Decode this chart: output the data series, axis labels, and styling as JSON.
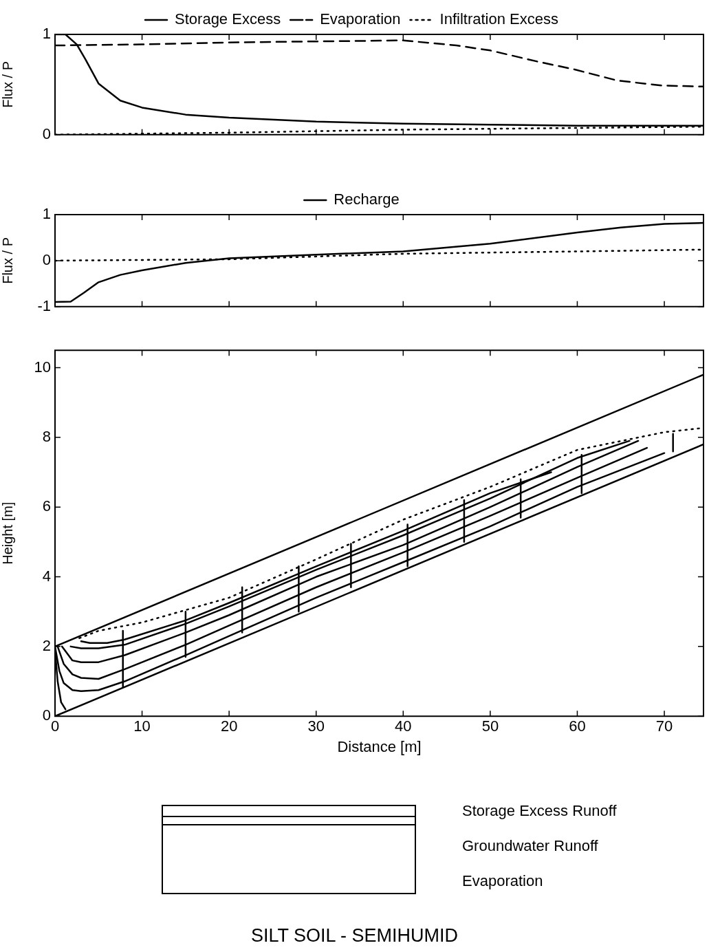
{
  "chart_data": [
    {
      "type": "line",
      "ylabel": "Flux / P",
      "xlim": [
        0,
        74.5
      ],
      "ylim": [
        0,
        1
      ],
      "xticks": [
        0,
        10,
        20,
        30,
        40,
        50,
        60,
        70
      ],
      "yticks": [
        0,
        1
      ],
      "tick_labels": "y",
      "legend": "top",
      "series": [
        {
          "name": "Storage Excess",
          "color": "#000000",
          "line_style": "solid",
          "x": [
            0,
            1.2,
            2.5,
            3.5,
            5,
            7.5,
            10,
            15,
            20,
            30,
            40,
            50,
            60,
            74.5
          ],
          "values": [
            1,
            1,
            0.9,
            0.75,
            0.51,
            0.34,
            0.27,
            0.2,
            0.17,
            0.13,
            0.11,
            0.1,
            0.09,
            0.09
          ]
        },
        {
          "name": "Evaporation",
          "color": "#000000",
          "line_style": "dashed",
          "x": [
            0,
            10,
            20,
            30,
            40,
            46.1,
            50,
            55.4,
            59.7,
            64.6,
            69.7,
            74.5
          ],
          "values": [
            0.89,
            0.9,
            0.92,
            0.93,
            0.94,
            0.89,
            0.84,
            0.73,
            0.65,
            0.54,
            0.49,
            0.48
          ]
        },
        {
          "name": "Infiltration Excess",
          "color": "#000000",
          "line_style": "dotted",
          "x": [
            0,
            20,
            40,
            74.5
          ],
          "values": [
            0,
            0.02,
            0.05,
            0.08
          ]
        }
      ]
    },
    {
      "type": "line",
      "ylabel": "Flux / P",
      "xlim": [
        0,
        74.5
      ],
      "ylim": [
        -1,
        1
      ],
      "xticks": [
        0,
        10,
        20,
        30,
        40,
        50,
        60,
        70
      ],
      "yticks": [
        -1,
        0,
        1
      ],
      "tick_labels": "y",
      "legend": "top",
      "series": [
        {
          "name": "Recharge",
          "color": "#000000",
          "line_style": "solid",
          "x": [
            0,
            1.8,
            3.3,
            5,
            7.5,
            10,
            15,
            20,
            30,
            40,
            50,
            60,
            65,
            70,
            74.5
          ],
          "values": [
            -0.9,
            -0.89,
            -0.7,
            -0.47,
            -0.31,
            -0.21,
            -0.05,
            0.05,
            0.13,
            0.2,
            0.37,
            0.61,
            0.72,
            0.8,
            0.82
          ]
        },
        {
          "color": "#000000",
          "line_style": "dotted",
          "x": [
            0,
            20,
            40,
            60,
            74.5
          ],
          "values": [
            0,
            0.03,
            0.15,
            0.2,
            0.24
          ]
        }
      ]
    },
    {
      "type": "line",
      "title": "SILT SOIL - SEMIHUMID",
      "xlabel": "Distance [m]",
      "ylabel": "Height [m]",
      "xlim": [
        0,
        74.5
      ],
      "ylim": [
        0,
        10.5
      ],
      "xticks": [
        0,
        10,
        20,
        30,
        40,
        50,
        60,
        70
      ],
      "yticks": [
        0,
        2,
        4,
        6,
        8,
        10
      ],
      "annotations": [
        "Storage Excess Runoff",
        "Groundwater Runoff",
        "Evaporation"
      ],
      "series": [
        {
          "color": "#000000",
          "line_style": "solid",
          "x": [
            0,
            74.5
          ],
          "values": [
            2,
            9.8
          ]
        },
        {
          "color": "#000000",
          "line_style": "solid",
          "x": [
            0,
            74.5
          ],
          "values": [
            0,
            7.8
          ]
        },
        {
          "color": "#000000",
          "line_style": "dotted",
          "x": [
            2.8,
            5,
            10,
            20,
            30,
            40,
            50,
            60,
            70,
            74.5
          ],
          "values": [
            2.24,
            2.45,
            2.69,
            3.4,
            4.5,
            5.64,
            6.58,
            7.64,
            8.15,
            8.27
          ]
        },
        {
          "color": "#000000",
          "line_style": "solid",
          "x": [
            3,
            4,
            6,
            8,
            15,
            20,
            30,
            40,
            50,
            57
          ],
          "values": [
            2.15,
            2.1,
            2.1,
            2.2,
            2.75,
            3.25,
            4.3,
            5.32,
            6.4,
            7.0
          ]
        },
        {
          "color": "#000000",
          "line_style": "solid",
          "x": [
            1.8,
            3,
            5,
            8,
            15,
            20,
            30,
            40,
            50,
            60,
            66
          ],
          "values": [
            2,
            1.95,
            1.95,
            2.05,
            2.65,
            3.15,
            4.2,
            5.19,
            6.25,
            7.41,
            7.9
          ]
        },
        {
          "color": "#000000",
          "line_style": "solid",
          "x": [
            0.8,
            2,
            3,
            5,
            8,
            15,
            20,
            30,
            40,
            50,
            60,
            67
          ],
          "values": [
            2,
            1.6,
            1.55,
            1.55,
            1.75,
            2.4,
            2.9,
            4.0,
            4.91,
            6.0,
            7.15,
            7.9
          ]
        },
        {
          "color": "#000000",
          "line_style": "solid",
          "x": [
            0.3,
            1,
            2,
            3,
            5,
            8,
            15,
            20,
            30,
            40,
            50,
            60,
            68
          ],
          "values": [
            2,
            1.5,
            1.2,
            1.1,
            1.07,
            1.35,
            2.05,
            2.6,
            3.7,
            4.7,
            5.75,
            6.84,
            7.7
          ]
        },
        {
          "color": "#000000",
          "line_style": "solid",
          "x": [
            0,
            0.5,
            1,
            2,
            3,
            5,
            8,
            15,
            20,
            30,
            40,
            50,
            60,
            70
          ],
          "values": [
            2,
            1.3,
            0.95,
            0.75,
            0.72,
            0.75,
            1.0,
            1.75,
            2.3,
            3.4,
            4.42,
            5.45,
            6.58,
            7.55
          ]
        },
        {
          "color": "#000000",
          "line_style": "solid",
          "x": [
            0,
            0.3,
            0.7,
            1.2
          ],
          "values": [
            1.9,
            1.0,
            0.4,
            0.2
          ]
        },
        {
          "color": "#000000",
          "line_style": "solid",
          "x": [
            7.8,
            7.8,
            null,
            15,
            15,
            null,
            21.5,
            21.5,
            null,
            28,
            28,
            null,
            34,
            34,
            null,
            40.5,
            40.5,
            null,
            47,
            47,
            null,
            53.5,
            53.5,
            null,
            60.5,
            60.5,
            null,
            71,
            71
          ],
          "values": [
            0.85,
            2.45,
            null,
            1.7,
            3.0,
            null,
            2.4,
            3.7,
            null,
            3.0,
            4.3,
            null,
            3.7,
            4.95,
            null,
            4.3,
            5.5,
            null,
            5.0,
            6.2,
            null,
            5.7,
            6.8,
            null,
            6.4,
            7.5,
            null,
            7.6,
            8.1
          ]
        }
      ]
    }
  ]
}
